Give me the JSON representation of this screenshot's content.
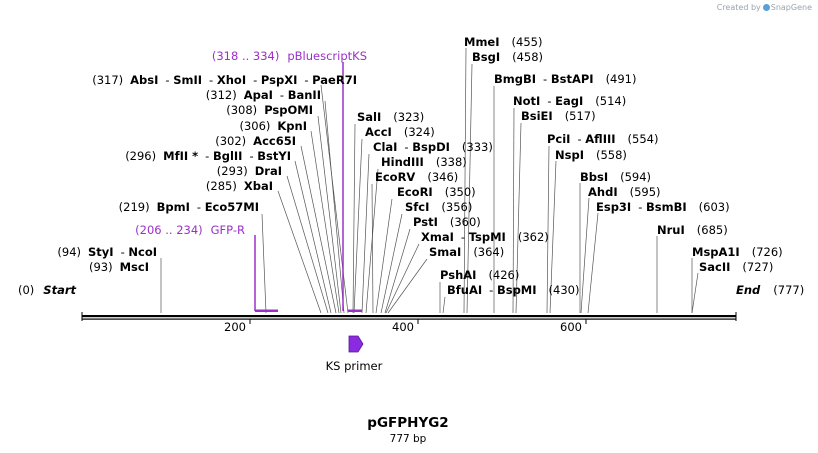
{
  "header": {
    "created_by": "Created by",
    "brand": "SnapGene"
  },
  "sequence": {
    "name": "pGFPHYG2",
    "length_label": "777 bp",
    "length": 777
  },
  "ends": {
    "start": {
      "pos": "(0)",
      "label": "Start"
    },
    "end": {
      "label": "End",
      "pos": "(777)"
    }
  },
  "ticks": [
    {
      "label": "200"
    },
    {
      "label": "400"
    },
    {
      "label": "600"
    }
  ],
  "primer_label": "KS primer",
  "features": [
    {
      "range": "(318 .. 334)",
      "name": "pBluescriptKS",
      "color": "#9b30c8"
    },
    {
      "range": "(206 .. 234)",
      "name": "GFP-R",
      "color": "#9b30c8"
    }
  ],
  "left_sites": [
    {
      "pos": "(317)",
      "names": [
        "AbsI",
        "SmII",
        "XhoI",
        "PspXI",
        "PaeR7I"
      ]
    },
    {
      "pos": "(312)",
      "names": [
        "ApaI",
        "BanII"
      ]
    },
    {
      "pos": "(308)",
      "names": [
        "PspOMI"
      ]
    },
    {
      "pos": "(306)",
      "names": [
        "KpnI"
      ]
    },
    {
      "pos": "(302)",
      "names": [
        "Acc65I"
      ]
    },
    {
      "pos": "(296)",
      "names": [
        "MfII *",
        "BglII",
        "BstYI"
      ]
    },
    {
      "pos": "(293)",
      "names": [
        "DraI"
      ]
    },
    {
      "pos": "(285)",
      "names": [
        "XbaI"
      ]
    },
    {
      "pos": "(219)",
      "names": [
        "BpmI",
        "Eco57MI"
      ]
    },
    {
      "pos": "(94)",
      "names": [
        "StyI",
        "NcoI"
      ]
    },
    {
      "pos": "(93)",
      "names": [
        "MscI"
      ]
    }
  ],
  "right_sites": [
    {
      "names": [
        "SalI"
      ],
      "pos": "(323)"
    },
    {
      "names": [
        "AccI"
      ],
      "pos": "(324)"
    },
    {
      "names": [
        "ClaI",
        "BspDI"
      ],
      "pos": "(333)"
    },
    {
      "names": [
        "HindIII"
      ],
      "pos": "(338)"
    },
    {
      "names": [
        "EcoRV"
      ],
      "pos": "(346)"
    },
    {
      "names": [
        "EcoRI"
      ],
      "pos": "(350)"
    },
    {
      "names": [
        "SfcI"
      ],
      "pos": "(356)"
    },
    {
      "names": [
        "PstI"
      ],
      "pos": "(360)"
    },
    {
      "names": [
        "XmaI",
        "TspMI"
      ],
      "pos": "(362)"
    },
    {
      "names": [
        "SmaI"
      ],
      "pos": "(364)"
    },
    {
      "names": [
        "PshAI"
      ],
      "pos": "(426)"
    },
    {
      "names": [
        "BfuAI",
        "BspMI"
      ],
      "pos": "(430)"
    },
    {
      "names": [
        "MmeI"
      ],
      "pos": "(455)"
    },
    {
      "names": [
        "BsgI"
      ],
      "pos": "(458)"
    },
    {
      "names": [
        "BmgBI",
        "BstAPI"
      ],
      "pos": "(491)"
    },
    {
      "names": [
        "NotI",
        "EagI"
      ],
      "pos": "(514)"
    },
    {
      "names": [
        "BsiEI"
      ],
      "pos": "(517)"
    },
    {
      "names": [
        "PciI",
        "AflIII"
      ],
      "pos": "(554)"
    },
    {
      "names": [
        "NspI"
      ],
      "pos": "(558)"
    },
    {
      "names": [
        "BbsI"
      ],
      "pos": "(594)"
    },
    {
      "names": [
        "AhdI"
      ],
      "pos": "(595)"
    },
    {
      "names": [
        "Esp3I",
        "BsmBI"
      ],
      "pos": "(603)"
    },
    {
      "names": [
        "NruI"
      ],
      "pos": "(685)"
    },
    {
      "names": [
        "MspA1I"
      ],
      "pos": "(726)"
    },
    {
      "names": [
        "SacII"
      ],
      "pos": "(727)"
    }
  ]
}
